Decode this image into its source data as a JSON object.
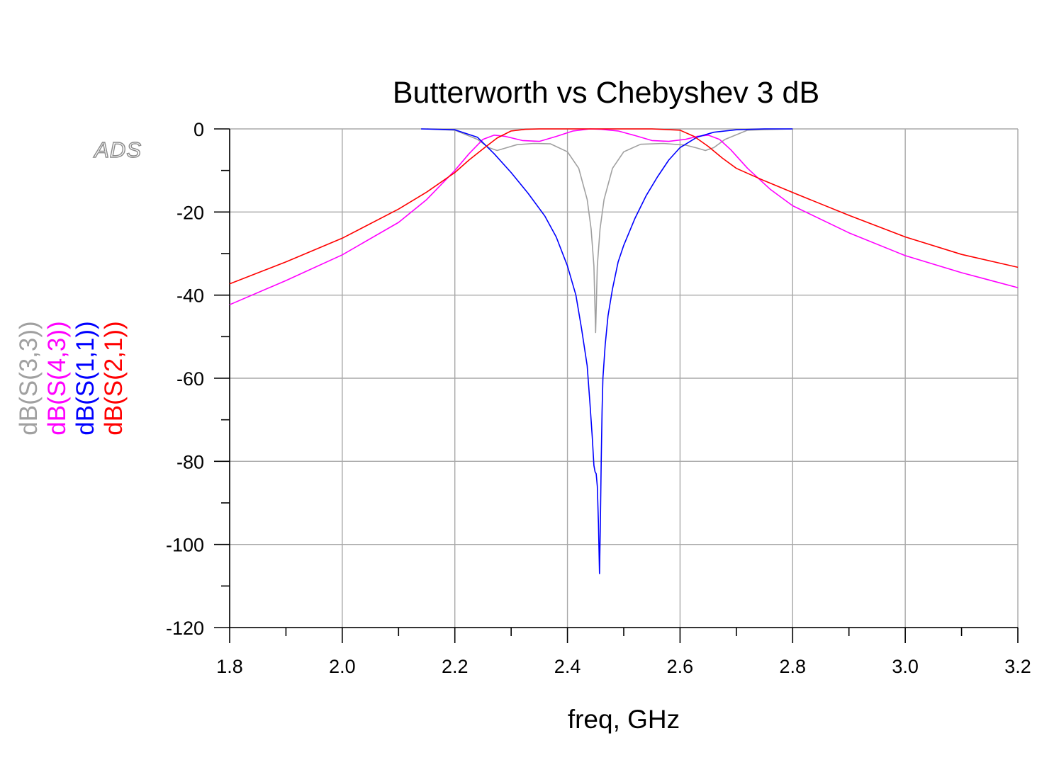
{
  "chart_data": {
    "type": "line",
    "title": "Butterworth vs Chebyshev 3 dB",
    "xlabel": "freq, GHz",
    "watermark": "ADS",
    "xlim": [
      1.8,
      3.2
    ],
    "ylim": [
      -120,
      0
    ],
    "x_ticks": [
      "1.8",
      "2.0",
      "2.2",
      "2.4",
      "2.6",
      "2.8",
      "3.0",
      "3.2"
    ],
    "x_tick_values": [
      1.8,
      2.0,
      2.2,
      2.4,
      2.6,
      2.8,
      3.0,
      3.2
    ],
    "y_ticks": [
      "0",
      "-20",
      "-40",
      "-60",
      "-80",
      "-100",
      "-120"
    ],
    "y_tick_values": [
      0,
      -20,
      -40,
      -60,
      -80,
      -100,
      -120
    ],
    "grid": true,
    "series": [
      {
        "name": "dB(S(3,3))",
        "color": "#a0a0a0",
        "x": [
          2.15,
          2.2,
          2.24,
          2.26,
          2.275,
          2.29,
          2.31,
          2.34,
          2.37,
          2.4,
          2.42,
          2.435,
          2.442,
          2.447,
          2.45,
          2.453,
          2.458,
          2.465,
          2.48,
          2.5,
          2.53,
          2.57,
          2.61,
          2.63,
          2.645,
          2.66,
          2.68,
          2.72,
          2.8
        ],
        "values": [
          0,
          -0.3,
          -2.5,
          -4.5,
          -5.2,
          -4.6,
          -3.8,
          -3.5,
          -3.6,
          -5.5,
          -9.5,
          -17,
          -24,
          -33,
          -49,
          -33,
          -24,
          -17,
          -9.5,
          -5.5,
          -3.7,
          -3.5,
          -3.9,
          -4.6,
          -5.2,
          -4.5,
          -2.5,
          -0.3,
          0
        ]
      },
      {
        "name": "dB(S(4,3))",
        "color": "#ff00ff",
        "x": [
          1.8,
          1.9,
          2.0,
          2.1,
          2.15,
          2.2,
          2.225,
          2.25,
          2.27,
          2.29,
          2.32,
          2.35,
          2.38,
          2.41,
          2.44,
          2.46,
          2.49,
          2.52,
          2.55,
          2.58,
          2.61,
          2.63,
          2.65,
          2.67,
          2.69,
          2.72,
          2.76,
          2.8,
          2.9,
          3.0,
          3.1,
          3.2
        ],
        "values": [
          -42.3,
          -36.5,
          -30.3,
          -22.5,
          -17,
          -10,
          -6,
          -2.5,
          -1.5,
          -1.8,
          -2.8,
          -3.0,
          -1.8,
          -0.5,
          0,
          -0.1,
          -0.5,
          -1.6,
          -2.8,
          -3.0,
          -2.5,
          -1.8,
          -1.5,
          -2.5,
          -5,
          -9.5,
          -14.5,
          -18.5,
          -25,
          -30.5,
          -34.6,
          -38.2
        ]
      },
      {
        "name": "dB(S(1,1))",
        "color": "#0000ff",
        "x": [
          2.14,
          2.2,
          2.24,
          2.27,
          2.3,
          2.33,
          2.36,
          2.38,
          2.4,
          2.415,
          2.425,
          2.435,
          2.44,
          2.444,
          2.447,
          2.449,
          2.451,
          2.453,
          2.455,
          2.457,
          2.4585,
          2.46,
          2.4615,
          2.463,
          2.467,
          2.472,
          2.48,
          2.49,
          2.5,
          2.52,
          2.54,
          2.56,
          2.58,
          2.6,
          2.63,
          2.66,
          2.7,
          2.75,
          2.8
        ],
        "values": [
          0,
          -0.2,
          -2,
          -6,
          -10.5,
          -15.5,
          -21,
          -26,
          -33,
          -40,
          -48,
          -57,
          -66,
          -74,
          -81,
          -82.5,
          -83,
          -86,
          -95,
          -107,
          -95,
          -80,
          -68,
          -60,
          -52,
          -45,
          -38.5,
          -32,
          -28,
          -21.5,
          -16,
          -11.5,
          -7.5,
          -4.5,
          -2,
          -0.8,
          -0.2,
          0,
          0
        ]
      },
      {
        "name": "dB(S(2,1))",
        "color": "#ff0000",
        "x": [
          1.8,
          1.9,
          2.0,
          2.1,
          2.15,
          2.2,
          2.225,
          2.25,
          2.275,
          2.3,
          2.325,
          2.35,
          2.4,
          2.45,
          2.5,
          2.55,
          2.6,
          2.625,
          2.65,
          2.675,
          2.7,
          2.75,
          2.8,
          2.9,
          3.0,
          3.1,
          3.2
        ],
        "values": [
          -37.3,
          -32,
          -26.3,
          -19.3,
          -15.2,
          -10.5,
          -7.5,
          -4.8,
          -2.2,
          -0.5,
          -0.1,
          0,
          0,
          0,
          0,
          0,
          -0.3,
          -1.8,
          -4.2,
          -7,
          -9.5,
          -12.5,
          -15.3,
          -20.8,
          -26,
          -30.2,
          -33.3
        ]
      }
    ]
  }
}
